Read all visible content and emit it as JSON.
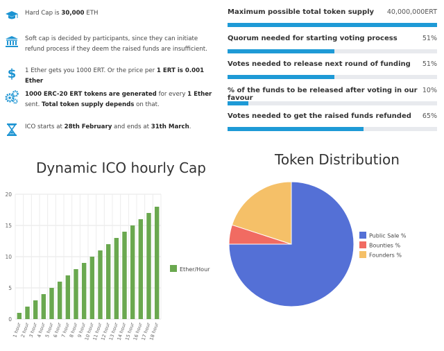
{
  "facts": [
    {
      "icon": "graduation-cap-icon",
      "html_parts": [
        [
          "Hard Cap is ",
          false
        ],
        [
          "30,000",
          true
        ],
        [
          " ETH",
          false
        ]
      ]
    },
    {
      "icon": "bank-icon",
      "html_parts": [
        [
          "Soft cap is decided by participants, since they can initiate refund process if they deem the raised funds are insufficient.",
          false
        ]
      ]
    },
    {
      "icon": "dollar-icon",
      "html_parts": [
        [
          "1 Ether gets you 1000 ERT. Or the price per ",
          false
        ],
        [
          "1 ERT is 0.001 Ether",
          true
        ]
      ]
    },
    {
      "icon": "gears-icon",
      "html_parts": [
        [
          "1000 ERC-20 ERT tokens are generated",
          true
        ],
        [
          " for every ",
          false
        ],
        [
          "1 Ether",
          true
        ],
        [
          " sent. ",
          false
        ],
        [
          "Total token supply depends",
          true
        ],
        [
          " on that.",
          false
        ]
      ]
    },
    {
      "icon": "hourglass-icon",
      "html_parts": [
        [
          "ICO starts at ",
          false
        ],
        [
          "28th February",
          true
        ],
        [
          " and ends at ",
          false
        ],
        [
          "31th March",
          true
        ],
        [
          ".",
          false
        ]
      ]
    }
  ],
  "progress": [
    {
      "label": "Maximum possible total token supply",
      "value_text": "40,000,000ERT",
      "fraction": 1.0
    },
    {
      "label": "Quorum needed for starting voting process",
      "value_text": "51%",
      "fraction": 0.51
    },
    {
      "label": "Votes needed to release next round of funding",
      "value_text": "51%",
      "fraction": 0.51
    },
    {
      "label": "% of the funds to be released after voting in our favour",
      "value_text": "10%",
      "fraction": 0.1
    },
    {
      "label": "Votes needed to get the raised funds refunded",
      "value_text": "65%",
      "fraction": 0.65
    }
  ],
  "colors": {
    "progress_fill": "#1e9ad6",
    "bar": "#6aa84f",
    "icon": "#1b93d2"
  },
  "chart_data": [
    {
      "type": "bar",
      "title": "Dynamic ICO hourly Cap",
      "categories": [
        "1 hour",
        "2 hour",
        "3 hour",
        "4 hour",
        "5 hour",
        "6 hour",
        "7 hour",
        "8 hour",
        "9 hour",
        "10 hour",
        "11 hour",
        "12 hour",
        "13 hour",
        "14 hour",
        "15 hour",
        "16 hour",
        "17 hour",
        "18 hour"
      ],
      "series": [
        {
          "name": "Ether/Hour",
          "values": [
            1,
            2,
            3,
            4,
            5,
            6,
            7,
            8,
            9,
            10,
            11,
            12,
            13,
            14,
            15,
            16,
            17,
            18
          ],
          "color": "#6aa84f"
        }
      ],
      "ylim": [
        0,
        20
      ],
      "yticks": [
        0,
        5,
        10,
        15,
        20
      ],
      "grid": true,
      "legend": "right"
    },
    {
      "type": "pie",
      "title": "Token Distribution",
      "labels": [
        "Public Sale %",
        "Bounties %",
        "Founders %"
      ],
      "values": [
        75,
        5,
        20
      ],
      "colors": [
        "#5470d6",
        "#f16b62",
        "#f5c068"
      ],
      "legend": "right"
    }
  ]
}
